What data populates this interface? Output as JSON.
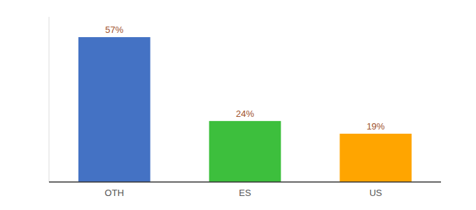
{
  "chart_data": {
    "type": "bar",
    "categories": [
      "OTH",
      "ES",
      "US"
    ],
    "values": [
      57,
      24,
      19
    ],
    "value_labels": [
      "57%",
      "24%",
      "19%"
    ],
    "data_labels": true,
    "colors": [
      "#4472C4",
      "#3DBF3D",
      "#FFA500"
    ],
    "ylim": [
      0,
      65
    ],
    "tick_labels": "x",
    "grid": false
  }
}
